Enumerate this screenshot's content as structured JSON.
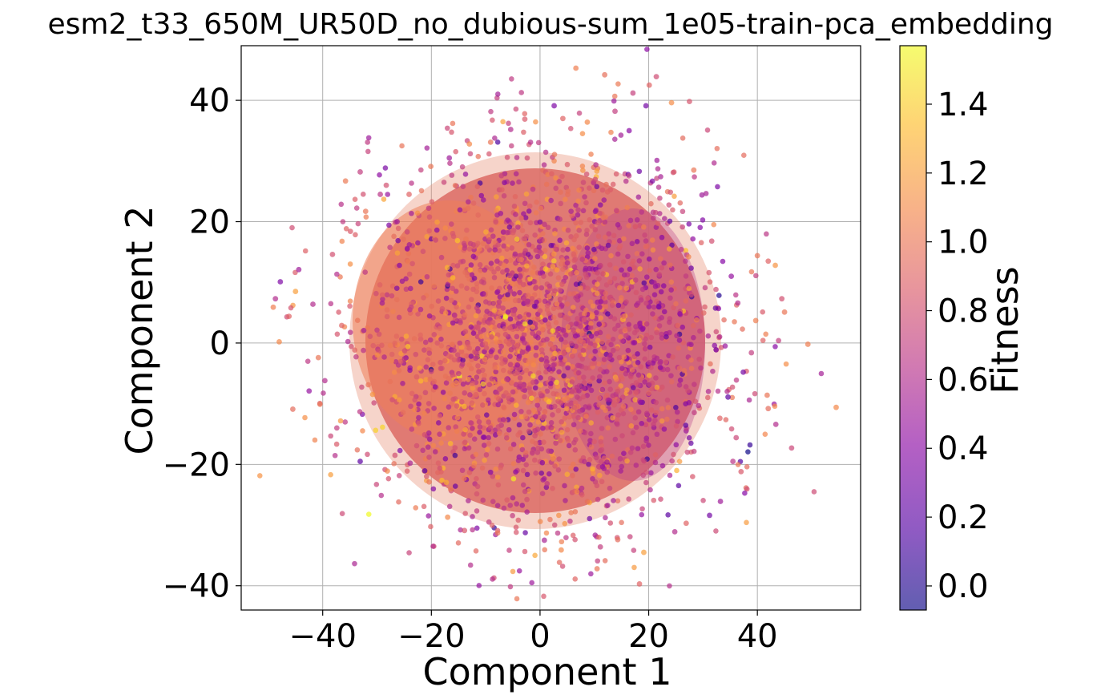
{
  "chart_data": {
    "type": "scatter",
    "title": "esm2_t33_650M_UR50D_no_dubious-sum_1e05-train-pca_embedding",
    "xlabel": "Component 1",
    "ylabel": "Component 2",
    "xlim": [
      -55,
      59
    ],
    "ylim": [
      -44,
      49
    ],
    "xticks": [
      {
        "value": -40,
        "label": "−40"
      },
      {
        "value": -20,
        "label": "−20"
      },
      {
        "value": 0,
        "label": "0"
      },
      {
        "value": 20,
        "label": "20"
      },
      {
        "value": 40,
        "label": "40"
      }
    ],
    "yticks": [
      {
        "value": -40,
        "label": "−40"
      },
      {
        "value": -20,
        "label": "−20"
      },
      {
        "value": 0,
        "label": "0"
      },
      {
        "value": 20,
        "label": "20"
      },
      {
        "value": 40,
        "label": "40"
      }
    ],
    "grid": true,
    "marker_alpha": 0.7,
    "colorbar": {
      "label": "Fitness",
      "colormap": "plasma",
      "range": [
        -0.07,
        1.57
      ],
      "ticks": [
        {
          "value": 0.0,
          "label": "0.0"
        },
        {
          "value": 0.2,
          "label": "0.2"
        },
        {
          "value": 0.4,
          "label": "0.4"
        },
        {
          "value": 0.6,
          "label": "0.6"
        },
        {
          "value": 0.8,
          "label": "0.8"
        },
        {
          "value": 1.0,
          "label": "1.0"
        },
        {
          "value": 1.2,
          "label": "1.2"
        },
        {
          "value": 1.4,
          "label": "1.4"
        }
      ]
    },
    "points": [
      [
        6.6,
        45.3,
        1.05
      ],
      [
        11.9,
        44.2,
        0.97
      ],
      [
        20.1,
        42.5,
        0.9
      ],
      [
        21.4,
        43.9,
        0.78
      ],
      [
        17.1,
        41.2,
        0.72
      ],
      [
        24.2,
        39.6,
        1.12
      ],
      [
        27.5,
        39.8,
        0.83
      ],
      [
        19.5,
        39.1,
        0.3
      ],
      [
        -20.1,
        29.1,
        1.0
      ],
      [
        -24.1,
        24.5,
        0.9
      ],
      [
        -13.0,
        32.8,
        1.1
      ],
      [
        -16.7,
        30.5,
        0.5
      ],
      [
        -28.3,
        26.0,
        0.8
      ],
      [
        -29.4,
        24.5,
        0.65
      ],
      [
        -35.8,
        26.7,
        1.02
      ],
      [
        -33.1,
        28.2,
        0.7
      ],
      [
        -49.1,
        5.9,
        1.05
      ],
      [
        -48.7,
        7.3,
        0.6
      ],
      [
        -47.8,
        10.1,
        0.35
      ],
      [
        -48.0,
        0.2,
        1.1
      ],
      [
        -46.2,
        4.4,
        0.9
      ],
      [
        -45.0,
        8.5,
        1.2
      ],
      [
        -44.4,
        12.1,
        0.5
      ],
      [
        -42.5,
        -7.9,
        0.45
      ],
      [
        -45.5,
        -10.9,
        0.95
      ],
      [
        -40.5,
        -10.1,
        1.0
      ],
      [
        -39.6,
        -6.2,
        0.6
      ],
      [
        -33.1,
        -19.5,
        0.2
      ],
      [
        -28.1,
        -21.1,
        1.1
      ],
      [
        -26.7,
        -18.5,
        0.8
      ],
      [
        -23.9,
        -19.8,
        0.55
      ],
      [
        -20.4,
        -22.9,
        1.0
      ],
      [
        40.0,
        14.4,
        1.0
      ],
      [
        42.0,
        13.5,
        0.9
      ],
      [
        43.3,
        12.8,
        1.15
      ],
      [
        44.5,
        7.3,
        0.8
      ],
      [
        45.0,
        5.1,
        1.0
      ],
      [
        43.9,
        0.4,
        0.7
      ],
      [
        49.3,
        -0.2,
        1.05
      ],
      [
        54.5,
        -10.6,
        1.1
      ],
      [
        46.3,
        -17.3,
        0.75
      ],
      [
        42.0,
        -10.8,
        0.95
      ],
      [
        43.4,
        -13.4,
        0.6
      ],
      [
        41.8,
        -8.6,
        1.0
      ],
      [
        35.5,
        -19.5,
        0.65
      ],
      [
        37.0,
        -21.2,
        0.85
      ],
      [
        33.2,
        -26.1,
        0.5
      ],
      [
        31.2,
        -28.4,
        0.3
      ],
      [
        19.1,
        -34.5,
        1.2
      ],
      [
        18.3,
        -39.7,
        0.9
      ],
      [
        10.5,
        -37.2,
        1.0
      ],
      [
        11.1,
        -33.6,
        0.7
      ],
      [
        14.3,
        -32.4,
        0.95
      ],
      [
        3.9,
        -34.1,
        1.1
      ],
      [
        0.8,
        -32.5,
        0.55
      ],
      [
        -7.8,
        -31.3,
        1.0
      ],
      [
        -13.9,
        -30.9,
        0.85
      ],
      [
        -17.0,
        -28.7,
        1.1
      ],
      [
        -9.4,
        -29.5,
        0.7
      ],
      [
        26.9,
        -29.7,
        0.9
      ],
      [
        24.8,
        -31.1,
        0.6
      ],
      [
        29.8,
        24.4,
        0.5
      ],
      [
        31.6,
        16.8,
        0.8
      ],
      [
        28.3,
        28.5,
        1.0
      ],
      [
        -41.8,
        6.4,
        0.6
      ],
      [
        -38.2,
        14.6,
        0.8
      ],
      [
        -37.4,
        -14.0,
        0.7
      ],
      [
        -40.8,
        -2.4,
        1.0
      ],
      [
        -36.5,
        2.9,
        0.9
      ],
      [
        -34.9,
        18.4,
        0.85
      ],
      [
        -32.1,
        21.7,
        1.0
      ],
      [
        -26.3,
        20.0,
        0.5
      ],
      [
        37.4,
        -4.8,
        0.3
      ],
      [
        38.9,
        -1.6,
        0.7
      ],
      [
        36.4,
        6.6,
        0.6
      ],
      [
        39.7,
        3.7,
        1.05
      ],
      [
        35.2,
        11.0,
        0.45
      ],
      [
        33.1,
        -12.4,
        0.9
      ],
      [
        34.6,
        -8.9,
        0.2
      ],
      [
        36.1,
        -15.6,
        0.75
      ],
      [
        2.6,
        39.1,
        0.35
      ],
      [
        -5.4,
        35.2,
        0.6
      ],
      [
        4.2,
        37.0,
        0.9
      ],
      [
        8.7,
        36.4,
        1.1
      ],
      [
        13.8,
        38.2,
        0.7
      ],
      [
        16.4,
        35.0,
        0.4
      ],
      [
        -9.1,
        33.1,
        1.0
      ],
      [
        -2.8,
        36.9,
        0.85
      ]
    ]
  }
}
